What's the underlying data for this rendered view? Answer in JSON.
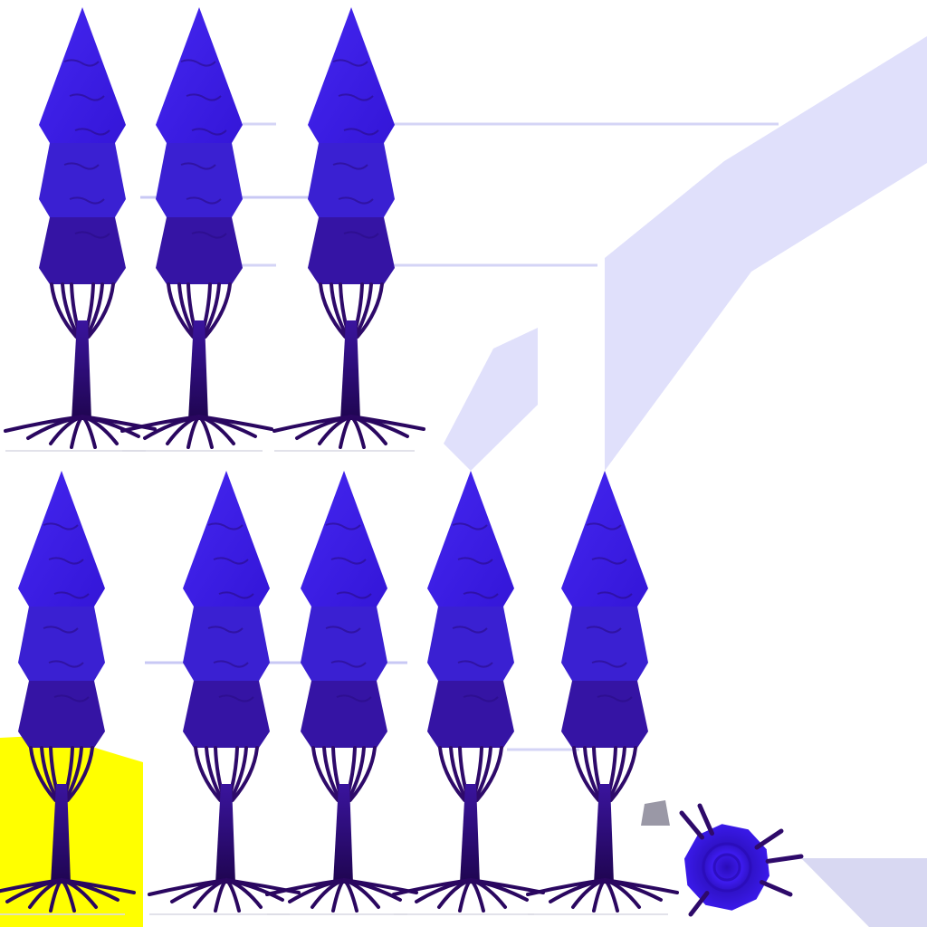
{
  "texture_sheet": {
    "kind": "tree-sprite-texture-atlas",
    "colors": {
      "background": "#ffffff",
      "foliage_bright": "#3b1ee6",
      "foliage_mid": "#3a20d2",
      "foliage_dark": "#3514a4",
      "foliage_shadow": "#2a0c86",
      "trunk": "#2e0a6a",
      "trunk_dark": "#1f0550",
      "root_ground": "#2a0760",
      "highlight_patch": "#ffff00",
      "pale_strip": "#e0e0fb",
      "pale_line": "#c8c8f4",
      "gray_shard": "#9a98a6",
      "stump_top": "#3d1bee",
      "stump_ring": "#2a0cb8"
    },
    "rows": [
      {
        "name": "top-row",
        "tree_count": 3
      },
      {
        "name": "bottom-row",
        "tree_count": 5
      }
    ],
    "extra_parts": [
      {
        "name": "yellow-patch"
      },
      {
        "name": "stump-disc"
      },
      {
        "name": "diagonal-pale-band"
      },
      {
        "name": "small-pale-band"
      }
    ]
  }
}
